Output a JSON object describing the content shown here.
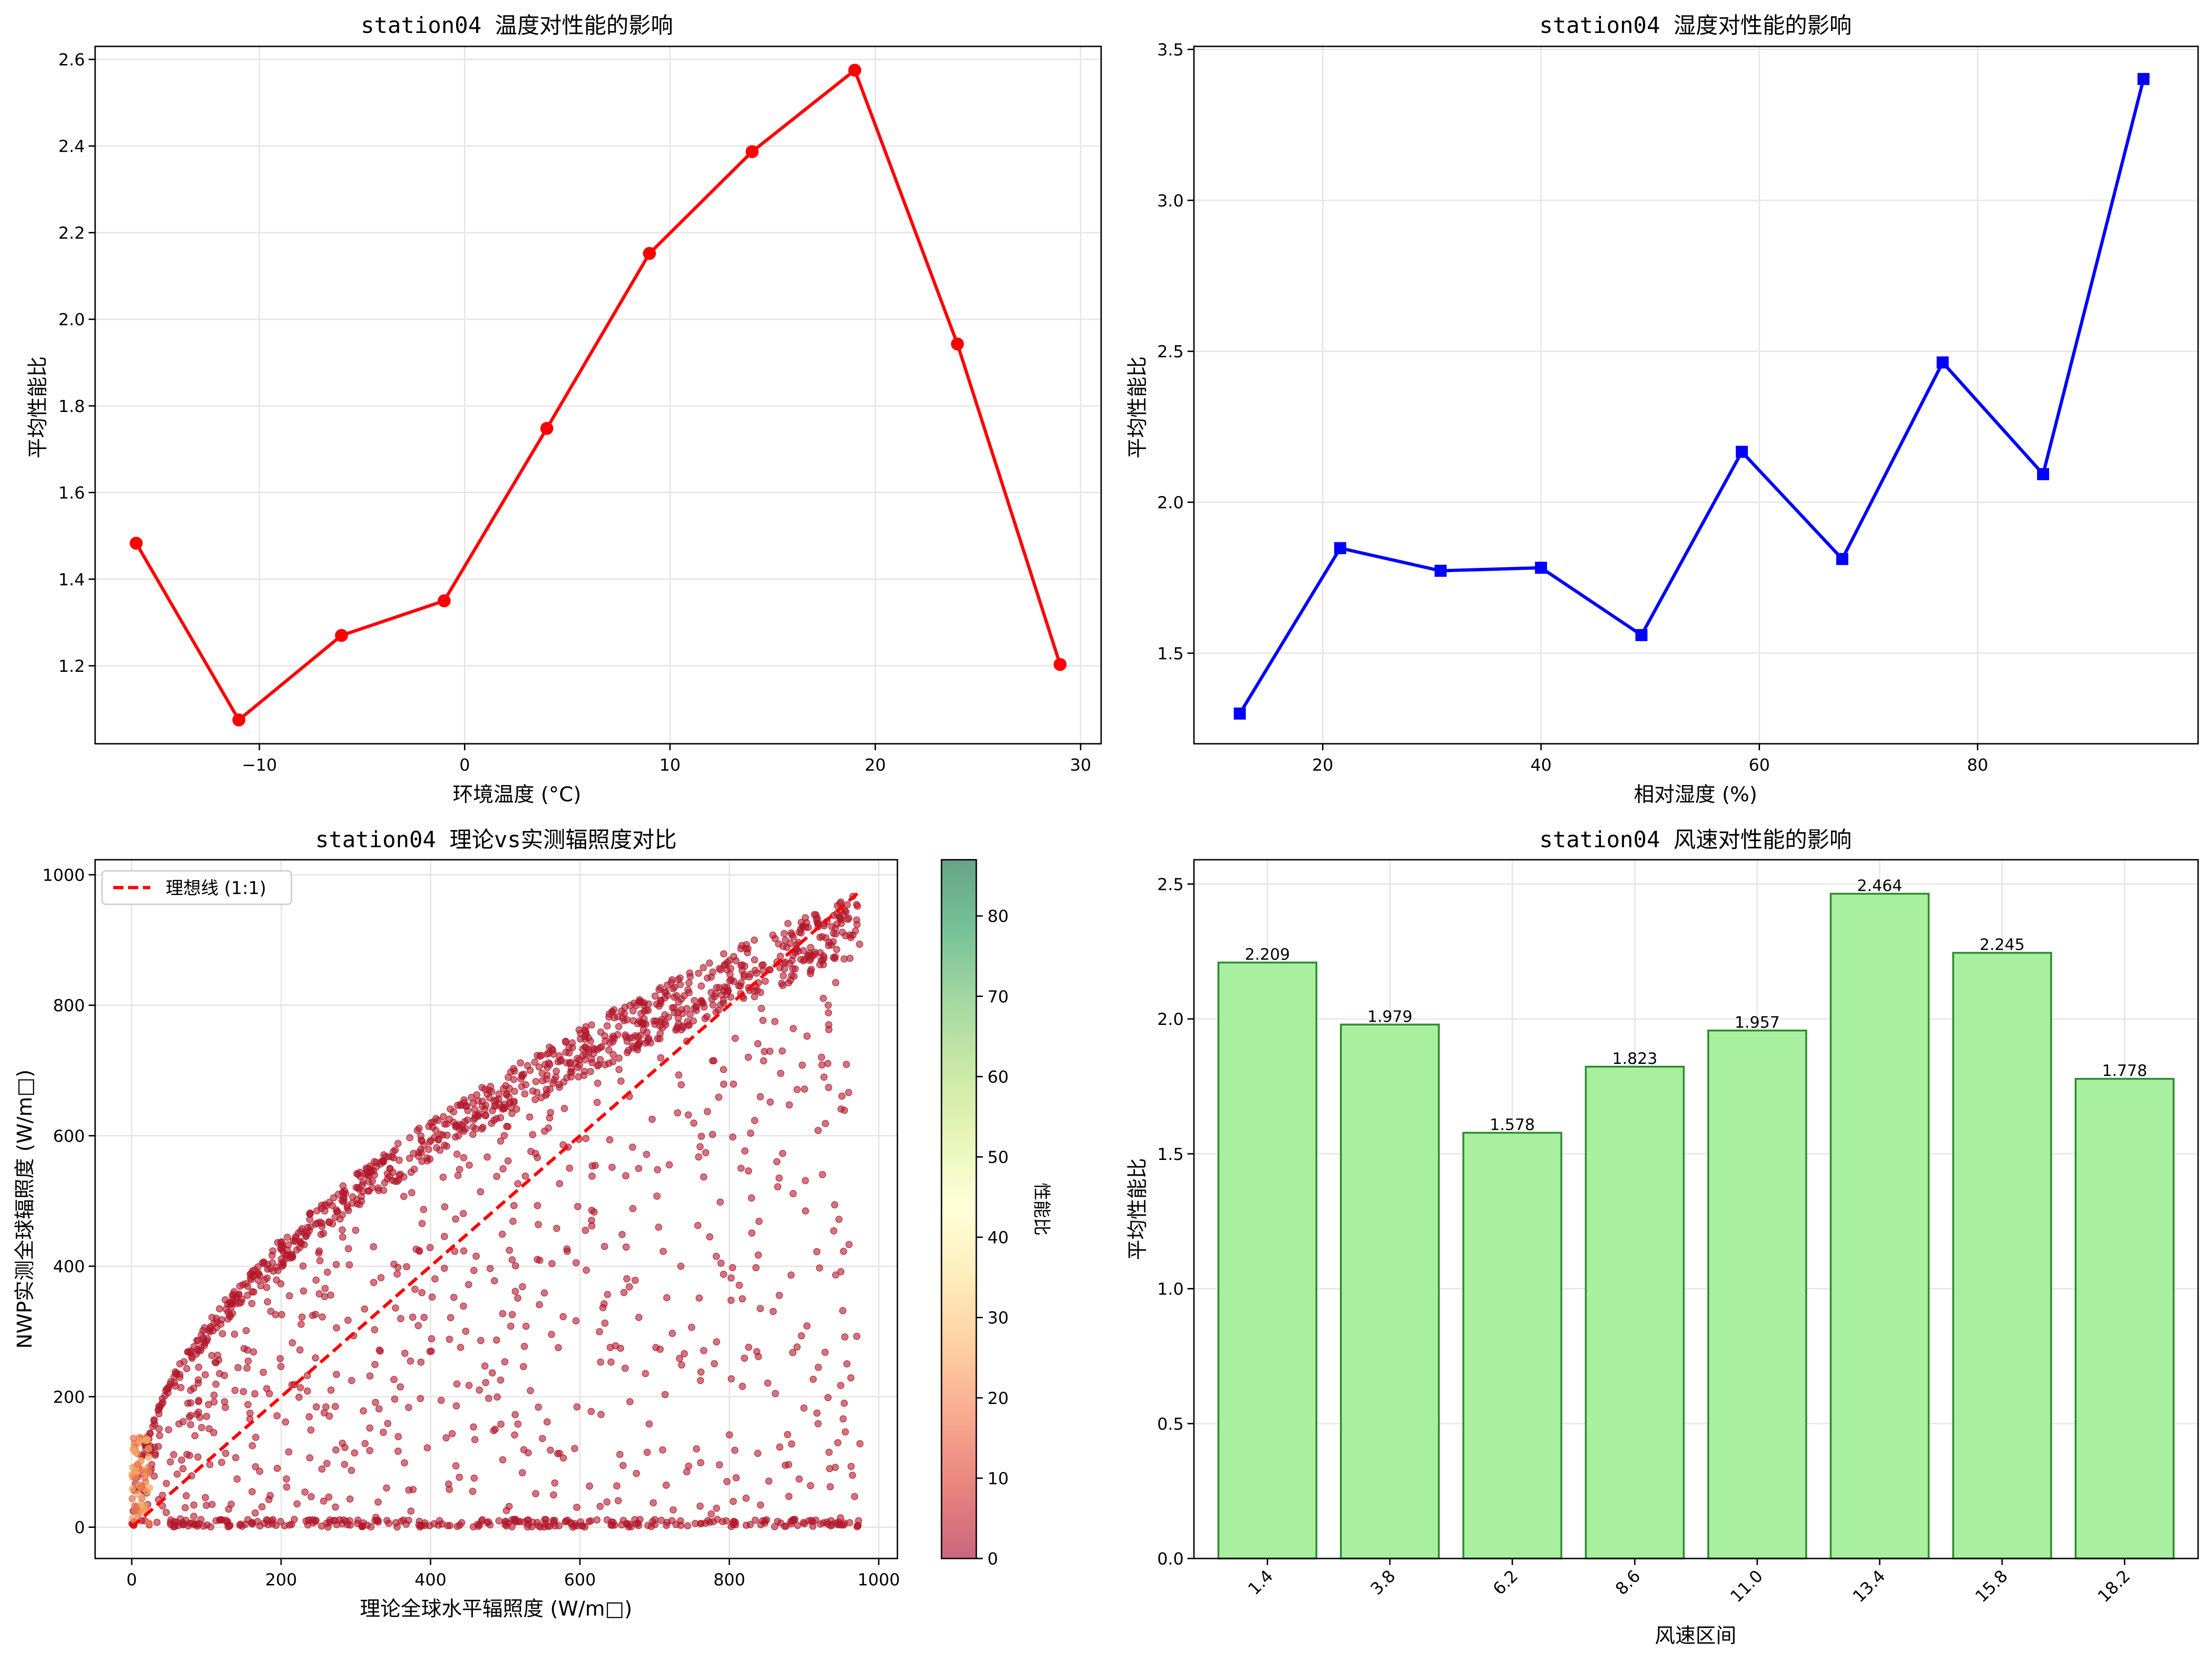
{
  "chart_data": [
    {
      "type": "line",
      "title": "station04 温度对性能的影响",
      "xlabel": "环境温度 (°C)",
      "ylabel": "平均性能比",
      "xlim": [
        -18,
        31
      ],
      "ylim": [
        1.02,
        2.63
      ],
      "xticks": [
        -10,
        0,
        10,
        20,
        30
      ],
      "xtick_labels": [
        "−10",
        "0",
        "10",
        "20",
        "30"
      ],
      "yticks": [
        1.2,
        1.4,
        1.6,
        1.8,
        2.0,
        2.2,
        2.4,
        2.6
      ],
      "ytick_labels": [
        "1.2",
        "1.4",
        "1.6",
        "1.8",
        "2.0",
        "2.2",
        "2.4",
        "2.6"
      ],
      "grid": true,
      "series": [
        {
          "color": "#ff0000",
          "marker": "circle",
          "x": [
            -16,
            -11,
            -6,
            -1,
            4,
            9,
            14,
            19,
            24,
            29
          ],
          "y": [
            1.483,
            1.075,
            1.27,
            1.35,
            1.748,
            2.152,
            2.387,
            2.575,
            1.943,
            1.203
          ]
        }
      ]
    },
    {
      "type": "line",
      "title": "station04 湿度对性能的影响",
      "xlabel": "相对湿度 (%)",
      "ylabel": "平均性能比",
      "xlim": [
        8.2,
        100.2
      ],
      "ylim": [
        1.2,
        3.51
      ],
      "xticks": [
        20,
        40,
        60,
        80
      ],
      "xtick_labels": [
        "20",
        "40",
        "60",
        "80"
      ],
      "yticks": [
        1.5,
        2.0,
        2.5,
        3.0,
        3.5
      ],
      "ytick_labels": [
        "1.5",
        "2.0",
        "2.5",
        "3.0",
        "3.5"
      ],
      "grid": true,
      "series": [
        {
          "color": "#0000ff",
          "marker": "square",
          "x": [
            12.4,
            21.6,
            30.8,
            40,
            49.2,
            58.4,
            67.6,
            76.8,
            86,
            95.2
          ],
          "y": [
            1.3,
            1.848,
            1.773,
            1.783,
            1.56,
            2.167,
            1.812,
            2.463,
            2.093,
            3.402
          ]
        }
      ]
    },
    {
      "type": "scatter",
      "title": "station04 理论vs实测辐照度对比",
      "xlabel": "理论全球水平辐照度 (W/m□)",
      "ylabel": "NWP实测全球辐照度 (W/m□)",
      "xlim": [
        -49,
        1025
      ],
      "ylim": [
        -48,
        1023
      ],
      "xticks": [
        0,
        200,
        400,
        600,
        800,
        1000
      ],
      "xtick_labels": [
        "0",
        "200",
        "400",
        "600",
        "800",
        "1000"
      ],
      "yticks": [
        0,
        200,
        400,
        600,
        800,
        1000
      ],
      "ytick_labels": [
        "0",
        "200",
        "400",
        "600",
        "800",
        "1000"
      ],
      "grid": true,
      "legend": {
        "label": "理想线 (1:1)",
        "placement": "top-left"
      },
      "ideal_line": {
        "x": [
          0,
          975
        ],
        "y": [
          0,
          975
        ],
        "color": "#ff0000",
        "style": "dashed"
      },
      "colorbar": {
        "label": "性能比",
        "min": 0,
        "max": 87,
        "ticks": [
          0,
          10,
          20,
          30,
          40,
          50,
          60,
          70,
          80
        ],
        "tick_labels": [
          "0",
          "10",
          "20",
          "30",
          "40",
          "50",
          "60",
          "70",
          "80"
        ],
        "colormap": "RdYlGn"
      },
      "point_cloud": {
        "description_x_range": [
          0,
          975
        ],
        "upper_band": "y ≈ 975·sqrt(x/975) · (0.93–1.0)",
        "point_color": "#b2182b",
        "low_x_high_value_color": "#f4a460"
      }
    },
    {
      "type": "bar",
      "title": "station04 风速对性能的影响",
      "xlabel": "风速区间",
      "ylabel": "平均性能比",
      "ylim": [
        0,
        2.59
      ],
      "yticks": [
        0.0,
        0.5,
        1.0,
        1.5,
        2.0,
        2.5
      ],
      "ytick_labels": [
        "0.0",
        "0.5",
        "1.0",
        "1.5",
        "2.0",
        "2.5"
      ],
      "grid": true,
      "bar_color": "#a8f0a0",
      "edge_color": "#2e8b2e",
      "categories": [
        "1.4",
        "3.8",
        "6.2",
        "8.6",
        "11.0",
        "13.4",
        "15.8",
        "18.2"
      ],
      "values": [
        2.209,
        1.979,
        1.578,
        1.823,
        1.957,
        2.464,
        2.245,
        1.778
      ],
      "value_labels": [
        "2.209",
        "1.979",
        "1.578",
        "1.823",
        "1.957",
        "2.464",
        "2.245",
        "1.778"
      ]
    }
  ]
}
